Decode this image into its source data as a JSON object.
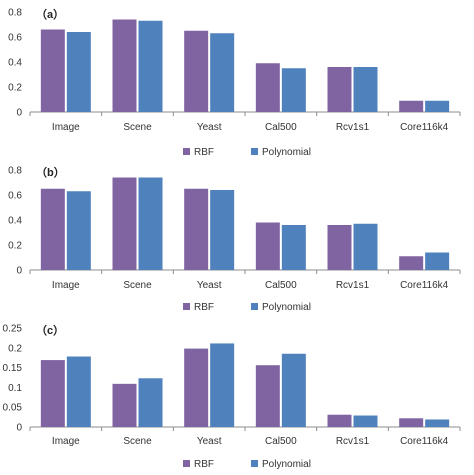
{
  "colors": {
    "rbf": "#8064A2",
    "polynomial": "#4F81BD",
    "axis": "#8c8c8c"
  },
  "chart_data": [
    {
      "type": "bar",
      "panel_label": "（a）",
      "categories": [
        "Image",
        "Scene",
        "Yeast",
        "Cal500",
        "Rcv1s1",
        "Core116k4"
      ],
      "series": [
        {
          "name": "RBF",
          "values": [
            0.66,
            0.74,
            0.65,
            0.39,
            0.36,
            0.09
          ]
        },
        {
          "name": "Polynomial",
          "values": [
            0.64,
            0.73,
            0.63,
            0.35,
            0.36,
            0.09
          ]
        }
      ],
      "yticks": [
        "0",
        "0.2",
        "0.4",
        "0.6",
        "0.8"
      ],
      "ylim": [
        0,
        0.8
      ],
      "grid": false,
      "legend_position": "bottom-center"
    },
    {
      "type": "bar",
      "panel_label": "（b）",
      "categories": [
        "Image",
        "Scene",
        "Yeast",
        "Cal500",
        "Rcv1s1",
        "Core116k4"
      ],
      "series": [
        {
          "name": "RBF",
          "values": [
            0.65,
            0.74,
            0.65,
            0.38,
            0.36,
            0.11
          ]
        },
        {
          "name": "Polynomial",
          "values": [
            0.63,
            0.74,
            0.64,
            0.36,
            0.37,
            0.14
          ]
        }
      ],
      "yticks": [
        "0",
        "0.2",
        "0.4",
        "0.6",
        "0.8"
      ],
      "ylim": [
        0,
        0.8
      ],
      "grid": false,
      "legend_position": "bottom-center"
    },
    {
      "type": "bar",
      "panel_label": "（c）",
      "categories": [
        "Image",
        "Scene",
        "Yeast",
        "Cal500",
        "Rcv1s1",
        "Core116k4"
      ],
      "series": [
        {
          "name": "RBF",
          "values": [
            0.169,
            0.109,
            0.198,
            0.156,
            0.031,
            0.022
          ]
        },
        {
          "name": "Polynomial",
          "values": [
            0.178,
            0.123,
            0.211,
            0.185,
            0.029,
            0.019
          ]
        }
      ],
      "yticks": [
        "0",
        "0.05",
        "0.1",
        "0.15",
        "0.2",
        "0.25"
      ],
      "ylim": [
        0,
        0.25
      ],
      "grid": false,
      "legend_position": "bottom-center"
    }
  ]
}
